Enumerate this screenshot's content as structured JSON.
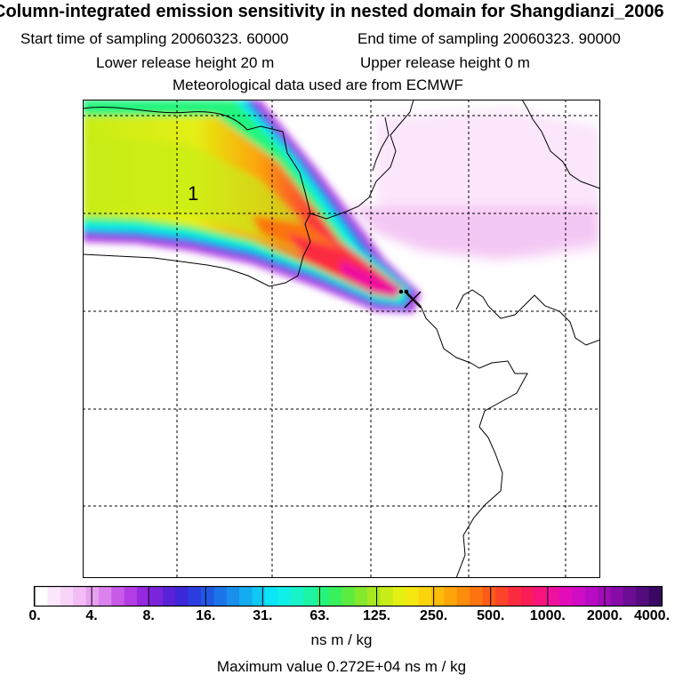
{
  "title": "Column-integrated emission sensitivity in nested domain for Shangdianzi_2006",
  "sampling": {
    "start": "Start time of sampling 20060323. 60000",
    "end": "End time of sampling 20060323. 90000"
  },
  "release": {
    "lower": "Lower release height   20 m",
    "upper": "Upper release height    0 m"
  },
  "met": "Meteorological data used are from ECMWF",
  "map": {
    "label": "1",
    "colors": {
      "border": "#000000",
      "grid": "#000000"
    }
  },
  "colorbar": {
    "colors": [
      "#ffffff",
      "#fce8fc",
      "#f8d4f8",
      "#f4bcf4",
      "#e8a0f0",
      "#dc82ee",
      "#c85ae8",
      "#b43ce4",
      "#9628e0",
      "#7a24dc",
      "#5a22d8",
      "#3c28d8",
      "#2a3ee0",
      "#2058e4",
      "#1c74e8",
      "#1890ec",
      "#14acf0",
      "#10c8f4",
      "#0ce4f8",
      "#10f0e8",
      "#18f4c8",
      "#1cf4a4",
      "#24f47c",
      "#38f05c",
      "#5cec40",
      "#84e82c",
      "#a8e820",
      "#c8ec18",
      "#e4f014",
      "#f4e810",
      "#fcd40c",
      "#fcbc08",
      "#fca408",
      "#fc8c0c",
      "#fc7410",
      "#fc5c18",
      "#fc4428",
      "#fc2c40",
      "#fc1c58",
      "#f8147c",
      "#f010a0",
      "#e40cb8",
      "#d00cc4",
      "#b80cc4",
      "#a00cb8",
      "#860ca8",
      "#6c0c94",
      "#520c7c",
      "#3a0864"
    ],
    "ticks": [
      "0.",
      "4.",
      "8.",
      "16.",
      "31.",
      "63.",
      "125.",
      "250.",
      "500.",
      "1000.",
      "2000.",
      "4000."
    ],
    "unit": "ns m / kg"
  },
  "max_value": "Maximum value  0.272E+04 ns m / kg"
}
